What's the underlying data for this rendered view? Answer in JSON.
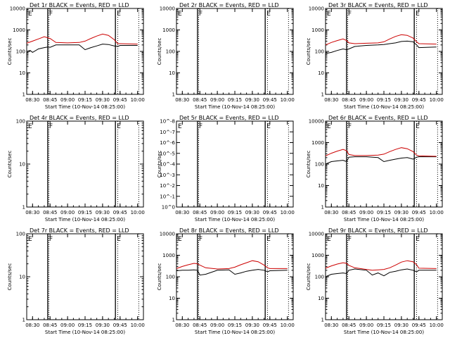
{
  "chart_data": [
    {
      "type": "line",
      "title": "Det 1r BLACK = Events, RED = LLD",
      "xlabel": "Start Time (10-Nov-14 08:25:00)",
      "ylabel": "Counts/sec",
      "xticks": [
        "08:30",
        "08:45",
        "09:00",
        "09:15",
        "09:30",
        "09:45",
        "10:00"
      ],
      "xlim": [
        "08:25",
        "10:05"
      ],
      "yscale": "log",
      "ylim": [
        1,
        10000
      ],
      "yticks": [
        "1",
        "10",
        "100",
        "1000",
        "10000"
      ],
      "markers": [
        {
          "time": "08:43",
          "style": "solid",
          "label": "F"
        },
        {
          "time": "08:44",
          "style": "dotted",
          "label": ""
        },
        {
          "time": "09:41",
          "style": "solid",
          "label": "E"
        },
        {
          "time": "09:43",
          "style": "dotted",
          "label": ""
        },
        {
          "time": "10:01",
          "style": "dotted",
          "label": ""
        }
      ],
      "series": [
        {
          "color": "#000000",
          "x": [
            "08:25",
            "08:28",
            "08:30",
            "08:35",
            "08:40",
            "08:43",
            "08:45",
            "08:50",
            "09:00",
            "09:10",
            "09:15",
            "09:20",
            "09:25",
            "09:30",
            "09:35",
            "09:40",
            "09:43",
            "09:45",
            "10:00"
          ],
          "values": [
            100,
            110,
            90,
            130,
            150,
            160,
            155,
            200,
            200,
            200,
            120,
            150,
            180,
            220,
            210,
            180,
            170,
            190,
            190
          ]
        },
        {
          "color": "#cc0000",
          "x": [
            "08:25",
            "08:30",
            "08:35",
            "08:40",
            "08:45",
            "08:50",
            "09:00",
            "09:10",
            "09:15",
            "09:20",
            "09:25",
            "09:30",
            "09:35",
            "09:40",
            "09:43",
            "09:45",
            "10:00"
          ],
          "values": [
            240,
            300,
            380,
            480,
            400,
            260,
            250,
            260,
            300,
            400,
            520,
            640,
            560,
            350,
            230,
            230,
            220
          ]
        }
      ]
    },
    {
      "type": "line",
      "title": "Det 2r BLACK = Events, RED = LLD",
      "xlabel": "Start Time (10-Nov-14 08:25:00)",
      "ylabel": "Counts/sec",
      "xticks": [
        "08:30",
        "08:45",
        "09:00",
        "09:15",
        "09:30",
        "09:45",
        "10:00"
      ],
      "xlim": [
        "08:25",
        "10:05"
      ],
      "yscale": "log",
      "ylim": [
        1,
        10000
      ],
      "yticks": [
        "1",
        "10",
        "100",
        "1000",
        "10000"
      ],
      "markers": [
        {
          "time": "08:43",
          "style": "solid",
          "label": "F"
        },
        {
          "time": "08:44",
          "style": "dotted",
          "label": ""
        },
        {
          "time": "09:41",
          "style": "solid",
          "label": "E"
        },
        {
          "time": "09:43",
          "style": "dotted",
          "label": ""
        },
        {
          "time": "10:01",
          "style": "dotted",
          "label": ""
        }
      ],
      "series": []
    },
    {
      "type": "line",
      "title": "Det 3r BLACK = Events, RED = LLD",
      "xlabel": "Start Time (10-Nov-14 08:25:00)",
      "ylabel": "Counts/sec",
      "xticks": [
        "08:30",
        "08:45",
        "09:00",
        "09:15",
        "09:30",
        "09:45",
        "10:00"
      ],
      "xlim": [
        "08:25",
        "10:05"
      ],
      "yscale": "log",
      "ylim": [
        1,
        10000
      ],
      "yticks": [
        "1",
        "10",
        "100",
        "1000",
        "10000"
      ],
      "markers": [
        {
          "time": "08:43",
          "style": "solid",
          "label": "F"
        },
        {
          "time": "08:44",
          "style": "dotted",
          "label": ""
        },
        {
          "time": "09:41",
          "style": "solid",
          "label": "E"
        },
        {
          "time": "09:43",
          "style": "dotted",
          "label": ""
        },
        {
          "time": "10:01",
          "style": "dotted",
          "label": ""
        }
      ],
      "series": [
        {
          "color": "#000000",
          "x": [
            "08:25",
            "08:30",
            "08:35",
            "08:40",
            "08:43",
            "08:45",
            "08:50",
            "09:00",
            "09:10",
            "09:15",
            "09:20",
            "09:25",
            "09:30",
            "09:35",
            "09:40",
            "09:43",
            "09:45",
            "10:00"
          ],
          "values": [
            80,
            90,
            110,
            130,
            120,
            130,
            170,
            190,
            200,
            210,
            230,
            250,
            290,
            300,
            280,
            200,
            150,
            160
          ]
        },
        {
          "color": "#cc0000",
          "x": [
            "08:25",
            "08:30",
            "08:35",
            "08:40",
            "08:43",
            "08:45",
            "08:50",
            "09:00",
            "09:10",
            "09:15",
            "09:20",
            "09:25",
            "09:30",
            "09:35",
            "09:40",
            "09:43",
            "09:45",
            "10:00"
          ],
          "values": [
            200,
            260,
            320,
            380,
            320,
            250,
            230,
            240,
            250,
            280,
            380,
            500,
            600,
            560,
            420,
            280,
            230,
            220
          ]
        }
      ]
    },
    {
      "type": "line",
      "title": "Det 4r BLACK = Events, RED = LLD",
      "xlabel": "Start Time (10-Nov-14 08:25:00)",
      "ylabel": "Counts/sec",
      "xticks": [
        "08:30",
        "08:45",
        "09:00",
        "09:15",
        "09:30",
        "09:45",
        "10:00"
      ],
      "xlim": [
        "08:25",
        "10:05"
      ],
      "yscale": "log",
      "ylim": [
        1,
        100
      ],
      "yticks": [
        "1",
        "10",
        "100"
      ],
      "markers": [
        {
          "time": "08:43",
          "style": "solid",
          "label": "F"
        },
        {
          "time": "08:44",
          "style": "dotted",
          "label": ""
        },
        {
          "time": "09:41",
          "style": "solid",
          "label": "E"
        },
        {
          "time": "09:43",
          "style": "dotted",
          "label": ""
        },
        {
          "time": "10:01",
          "style": "dotted",
          "label": ""
        }
      ],
      "series": []
    },
    {
      "type": "line",
      "title": "Det 5r BLACK = Events, RED = LLD",
      "xlabel": "Start Time (10-Nov-14 08:25:00)",
      "ylabel": "Counts/sec",
      "xticks": [
        "08:30",
        "08:45",
        "09:00",
        "09:15",
        "09:30",
        "09:45",
        "10:00"
      ],
      "xlim": [
        "08:25",
        "10:05"
      ],
      "yscale": "log",
      "ylim": [
        1,
        1e-08
      ],
      "yticks": [
        "10^0",
        "10^-1",
        "10^-2",
        "10^-3",
        "10^-4",
        "10^-5",
        "10^-6",
        "10^-7",
        "10^-8"
      ],
      "markers": [
        {
          "time": "08:43",
          "style": "solid",
          "label": "F"
        },
        {
          "time": "08:44",
          "style": "dotted",
          "label": ""
        },
        {
          "time": "09:41",
          "style": "solid",
          "label": "E"
        },
        {
          "time": "09:43",
          "style": "dotted",
          "label": ""
        },
        {
          "time": "10:01",
          "style": "dotted",
          "label": ""
        }
      ],
      "series": []
    },
    {
      "type": "line",
      "title": "Det 6r BLACK = Events, RED = LLD",
      "xlabel": "Start Time (10-Nov-14 08:25:00)",
      "ylabel": "Counts/sec",
      "xticks": [
        "08:30",
        "08:45",
        "09:00",
        "09:15",
        "09:30",
        "09:45",
        "10:00"
      ],
      "xlim": [
        "08:25",
        "10:05"
      ],
      "yscale": "log",
      "ylim": [
        1,
        10000
      ],
      "yticks": [
        "1",
        "10",
        "100",
        "1000",
        "10000"
      ],
      "markers": [
        {
          "time": "08:43",
          "style": "solid",
          "label": "F"
        },
        {
          "time": "08:44",
          "style": "dotted",
          "label": ""
        },
        {
          "time": "09:41",
          "style": "solid",
          "label": "E"
        },
        {
          "time": "09:43",
          "style": "dotted",
          "label": ""
        },
        {
          "time": "10:01",
          "style": "dotted",
          "label": ""
        }
      ],
      "series": [
        {
          "color": "#000000",
          "x": [
            "08:25",
            "08:30",
            "08:35",
            "08:40",
            "08:43",
            "08:45",
            "08:50",
            "09:00",
            "09:10",
            "09:15",
            "09:20",
            "09:25",
            "09:30",
            "09:35",
            "09:40",
            "09:43",
            "09:45",
            "10:00"
          ],
          "values": [
            100,
            130,
            140,
            150,
            130,
            210,
            220,
            220,
            200,
            130,
            150,
            170,
            190,
            200,
            170,
            210,
            220,
            220
          ]
        },
        {
          "color": "#cc0000",
          "x": [
            "08:25",
            "08:30",
            "08:35",
            "08:40",
            "08:43",
            "08:45",
            "08:50",
            "09:00",
            "09:10",
            "09:15",
            "09:20",
            "09:25",
            "09:30",
            "09:35",
            "09:40",
            "09:43",
            "09:45",
            "10:00"
          ],
          "values": [
            240,
            320,
            400,
            480,
            420,
            280,
            250,
            250,
            260,
            290,
            380,
            480,
            580,
            520,
            380,
            260,
            240,
            230
          ]
        }
      ]
    },
    {
      "type": "line",
      "title": "Det 7r BLACK = Events, RED = LLD",
      "xlabel": "Start Time (10-Nov-14 08:25:00)",
      "ylabel": "Counts/sec",
      "xticks": [
        "08:30",
        "08:45",
        "09:00",
        "09:15",
        "09:30",
        "09:45",
        "10:00"
      ],
      "xlim": [
        "08:25",
        "10:05"
      ],
      "yscale": "log",
      "ylim": [
        1,
        100
      ],
      "yticks": [
        "1",
        "10",
        "100"
      ],
      "markers": [
        {
          "time": "08:43",
          "style": "solid",
          "label": "F"
        },
        {
          "time": "08:44",
          "style": "dotted",
          "label": ""
        },
        {
          "time": "09:41",
          "style": "solid",
          "label": "E"
        },
        {
          "time": "09:43",
          "style": "dotted",
          "label": ""
        },
        {
          "time": "10:01",
          "style": "dotted",
          "label": ""
        }
      ],
      "series": []
    },
    {
      "type": "line",
      "title": "Det 8r BLACK = Events, RED = LLD",
      "xlabel": "Start Time (10-Nov-14 08:25:00)",
      "ylabel": "Counts/sec",
      "xticks": [
        "08:30",
        "08:45",
        "09:00",
        "09:15",
        "09:30",
        "09:45",
        "10:00"
      ],
      "xlim": [
        "08:25",
        "10:05"
      ],
      "yscale": "log",
      "ylim": [
        1,
        10000
      ],
      "yticks": [
        "1",
        "10",
        "100",
        "1000",
        "10000"
      ],
      "markers": [
        {
          "time": "08:43",
          "style": "solid",
          "label": "F"
        },
        {
          "time": "08:44",
          "style": "dotted",
          "label": ""
        },
        {
          "time": "09:41",
          "style": "solid",
          "label": "E"
        },
        {
          "time": "09:43",
          "style": "dotted",
          "label": ""
        },
        {
          "time": "10:01",
          "style": "dotted",
          "label": ""
        }
      ],
      "series": [
        {
          "color": "#000000",
          "x": [
            "08:25",
            "08:30",
            "08:35",
            "08:40",
            "08:43",
            "08:45",
            "08:50",
            "09:00",
            "09:10",
            "09:15",
            "09:20",
            "09:25",
            "09:30",
            "09:35",
            "09:40",
            "09:43",
            "09:45",
            "10:00"
          ],
          "values": [
            190,
            200,
            200,
            210,
            200,
            120,
            130,
            200,
            210,
            130,
            150,
            180,
            200,
            220,
            200,
            170,
            190,
            200
          ]
        },
        {
          "color": "#cc0000",
          "x": [
            "08:25",
            "08:30",
            "08:35",
            "08:40",
            "08:43",
            "08:45",
            "08:50",
            "09:00",
            "09:10",
            "09:15",
            "09:20",
            "09:25",
            "09:30",
            "09:35",
            "09:40",
            "09:43",
            "09:45",
            "10:00"
          ],
          "values": [
            240,
            300,
            360,
            420,
            400,
            350,
            260,
            230,
            240,
            280,
            360,
            450,
            560,
            500,
            350,
            260,
            240,
            240
          ]
        }
      ]
    },
    {
      "type": "line",
      "title": "Det 9r BLACK = Events, RED = LLD",
      "xlabel": "Start Time (10-Nov-14 08:25:00)",
      "ylabel": "Counts/sec",
      "xticks": [
        "08:30",
        "08:45",
        "09:00",
        "09:15",
        "09:30",
        "09:45",
        "10:00"
      ],
      "xlim": [
        "08:25",
        "10:05"
      ],
      "yscale": "log",
      "ylim": [
        1,
        10000
      ],
      "yticks": [
        "1",
        "10",
        "100",
        "1000",
        "10000"
      ],
      "markers": [
        {
          "time": "08:43",
          "style": "solid",
          "label": "F"
        },
        {
          "time": "08:44",
          "style": "dotted",
          "label": ""
        },
        {
          "time": "09:41",
          "style": "solid",
          "label": "E"
        },
        {
          "time": "09:43",
          "style": "dotted",
          "label": ""
        },
        {
          "time": "10:01",
          "style": "dotted",
          "label": ""
        }
      ],
      "series": [
        {
          "color": "#000000",
          "x": [
            "08:25",
            "08:30",
            "08:35",
            "08:40",
            "08:43",
            "08:45",
            "08:50",
            "09:00",
            "09:05",
            "09:10",
            "09:15",
            "09:20",
            "09:25",
            "09:30",
            "09:35",
            "09:40",
            "09:43",
            "09:45",
            "10:00"
          ],
          "values": [
            100,
            130,
            140,
            150,
            140,
            200,
            230,
            200,
            120,
            150,
            110,
            160,
            180,
            210,
            230,
            200,
            170,
            200,
            200
          ]
        },
        {
          "color": "#cc0000",
          "x": [
            "08:25",
            "08:30",
            "08:35",
            "08:40",
            "08:43",
            "08:45",
            "08:50",
            "09:00",
            "09:05",
            "09:10",
            "09:15",
            "09:20",
            "09:25",
            "09:30",
            "09:35",
            "09:40",
            "09:43",
            "09:45",
            "10:00"
          ],
          "values": [
            250,
            320,
            390,
            450,
            420,
            340,
            260,
            220,
            200,
            210,
            220,
            260,
            350,
            480,
            560,
            500,
            360,
            250,
            240
          ]
        }
      ]
    }
  ]
}
